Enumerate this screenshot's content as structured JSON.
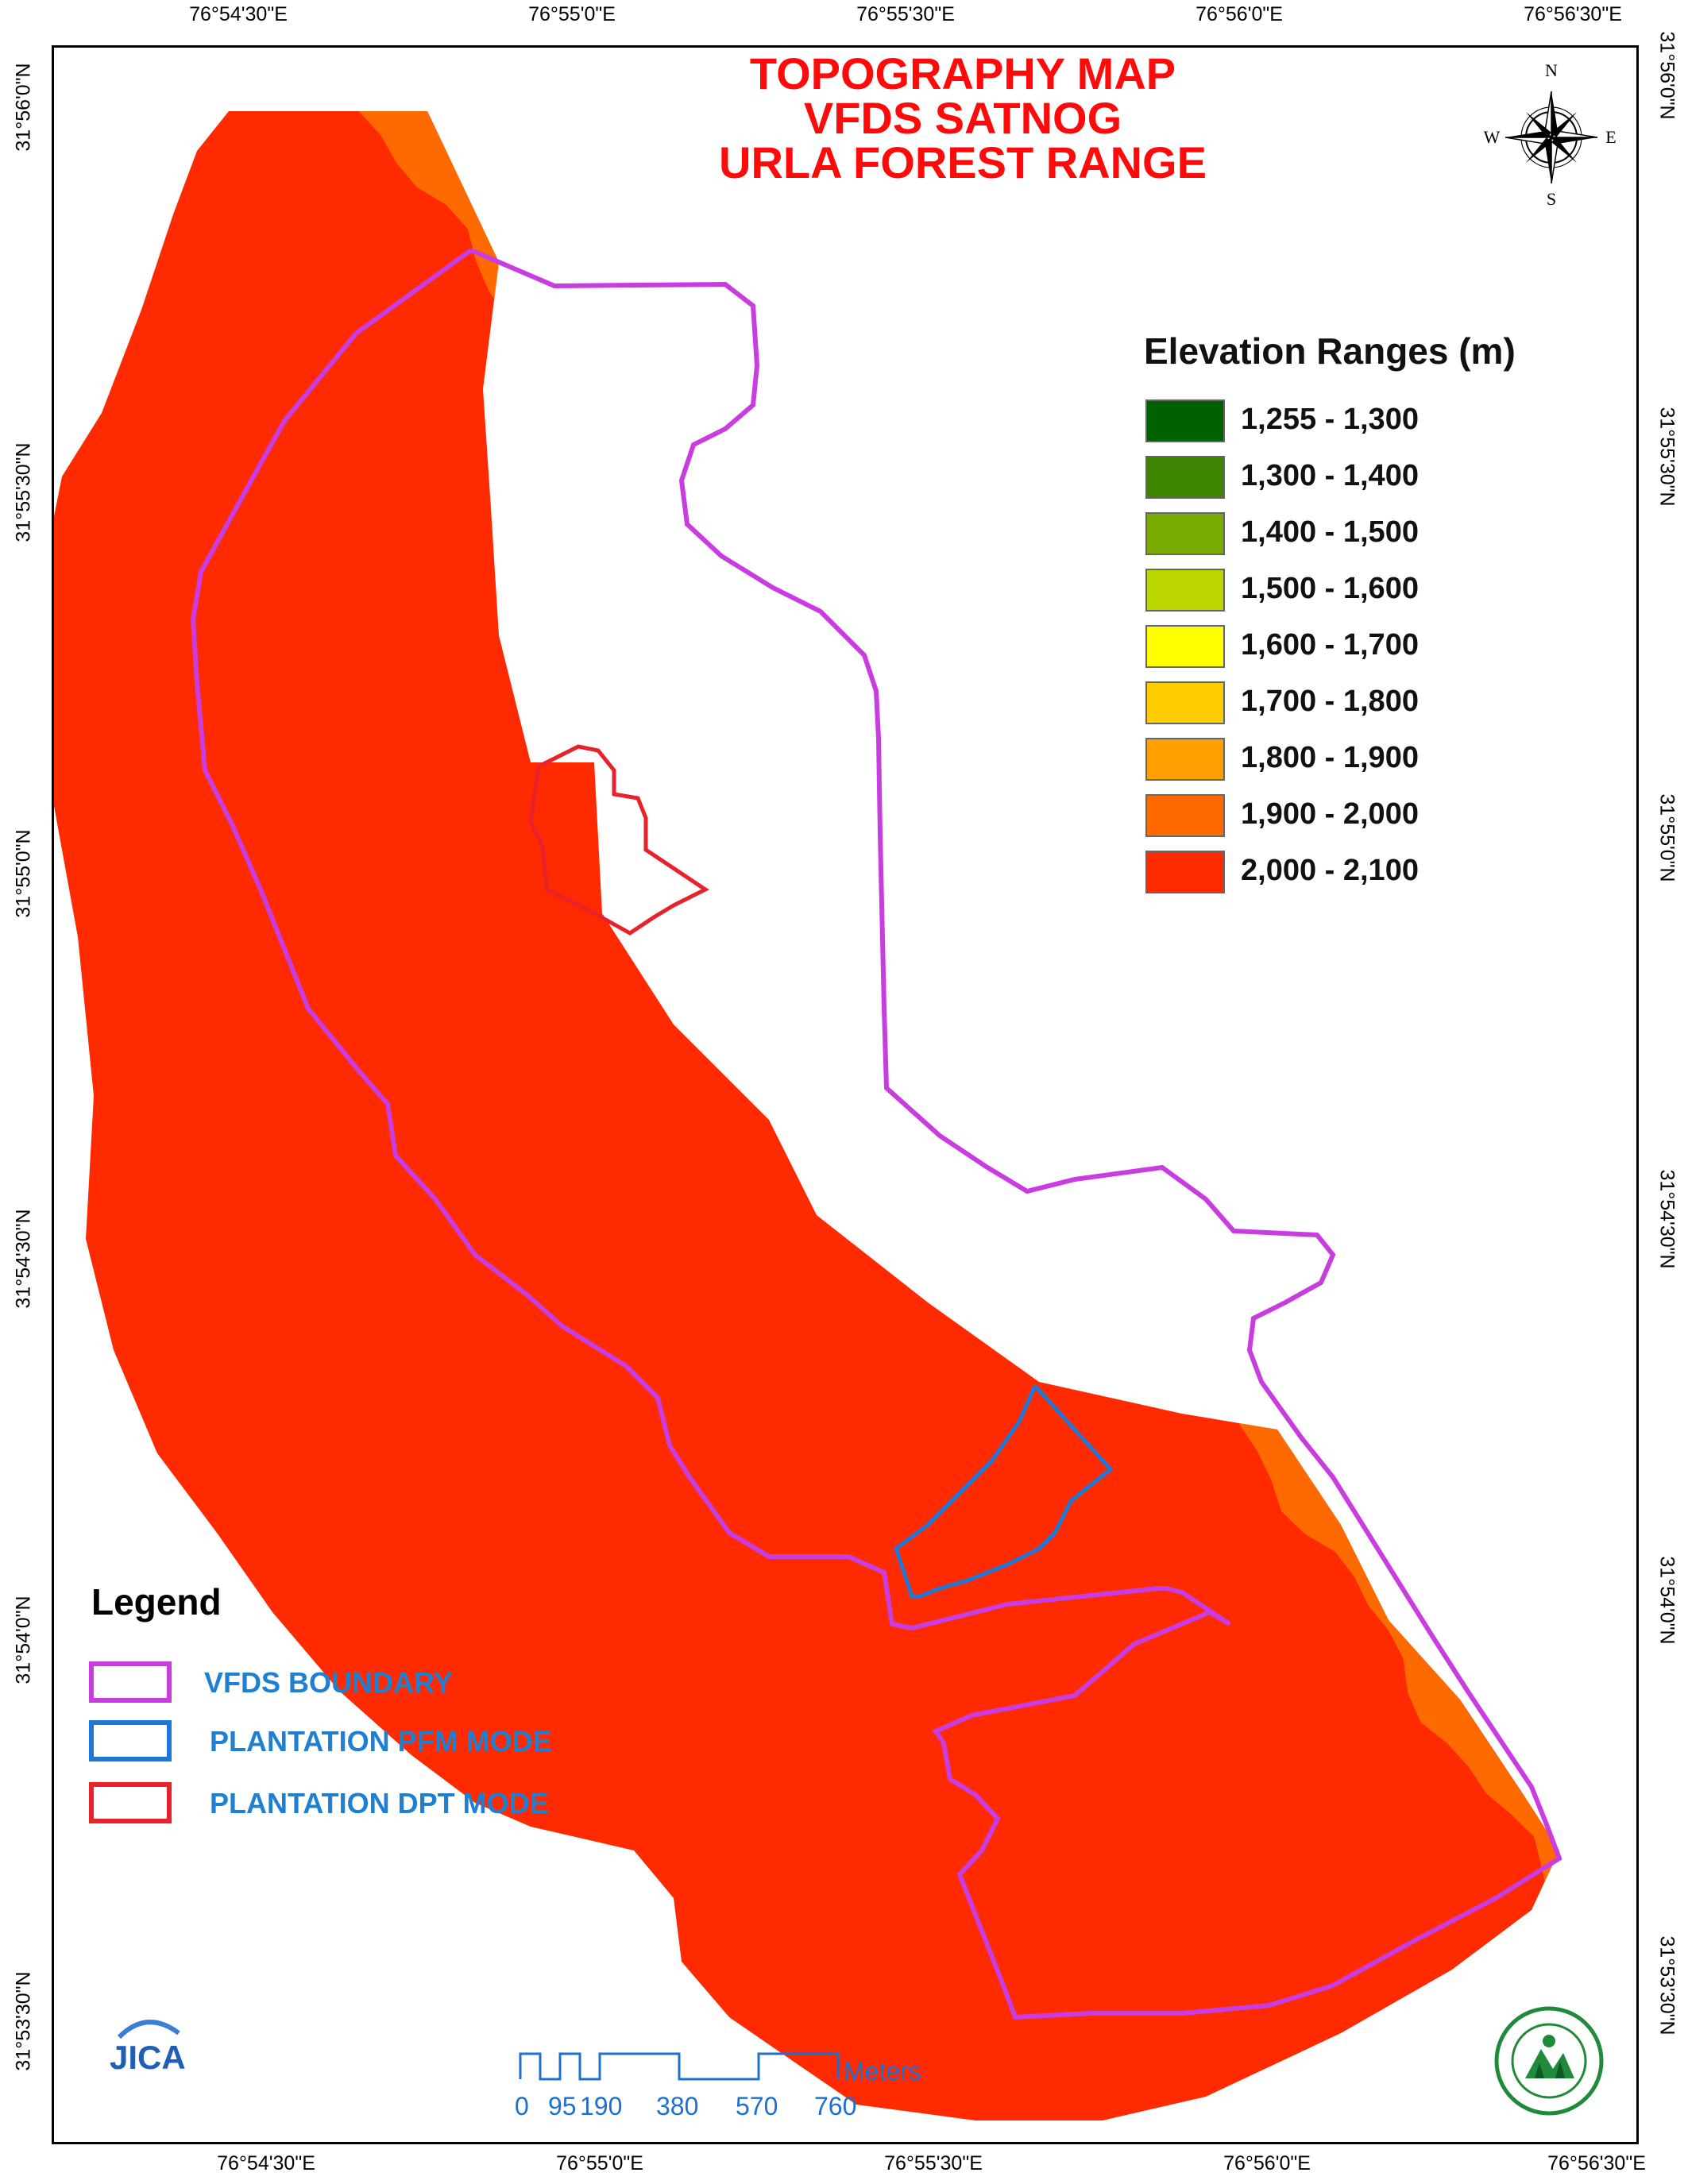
{
  "title_lines": [
    "TOPOGRAPHY MAP",
    "VFDS SATNOG",
    "URLA FOREST RANGE"
  ],
  "axis_ticks": {
    "top": [
      "76°54'30\"E",
      "76°55'0\"E",
      "76°55'30\"E",
      "76°56'0\"E",
      "76°56'30\"E"
    ],
    "bottom": [
      "76°54'30\"E",
      "76°55'0\"E",
      "76°55'30\"E",
      "76°56'0\"E",
      "76°56'30\"E"
    ],
    "left": [
      "31°56'0\"N",
      "31°55'30\"N",
      "31°55'0\"N",
      "31°54'30\"N",
      "31°54'0\"N",
      "31°53'30\"N"
    ],
    "right": [
      "31°56'0\"N",
      "31°55'30\"N",
      "31°55'0\"N",
      "31°54'30\"N",
      "31°54'0\"N",
      "31°53'30\"N"
    ]
  },
  "elevation_legend": {
    "title": "Elevation Ranges (m)",
    "classes": [
      {
        "label": "1,255 - 1,300",
        "color": "#006100"
      },
      {
        "label": "1,300 - 1,400",
        "color": "#3d8500"
      },
      {
        "label": "1,400 - 1,500",
        "color": "#7aab00"
      },
      {
        "label": "1,500 - 1,600",
        "color": "#bcd600"
      },
      {
        "label": "1,600 - 1,700",
        "color": "#ffff00"
      },
      {
        "label": "1,700 - 1,800",
        "color": "#ffcc00"
      },
      {
        "label": "1,800 - 1,900",
        "color": "#ffa000"
      },
      {
        "label": "1,900 - 2,000",
        "color": "#ff6a00"
      },
      {
        "label": "2,000 - 2,100",
        "color": "#ff2a00"
      }
    ]
  },
  "legend": {
    "title": "Legend",
    "items": [
      {
        "label": "VFDS BOUNDARY",
        "color": "#c83ce0"
      },
      {
        "label": "PLANTATION PFM MODE",
        "color": "#1f78d8"
      },
      {
        "label": "PLANTATION DPT MODE",
        "color": "#e8222a"
      }
    ]
  },
  "scale_bar": {
    "unit": "Meters",
    "labels": [
      "0",
      "95",
      "190",
      "380",
      "570",
      "760"
    ],
    "color": "#1f6fd1"
  },
  "compass": {
    "n": "N",
    "s": "S",
    "e": "E",
    "w": "W"
  },
  "jica_logo_text": "JICA"
}
